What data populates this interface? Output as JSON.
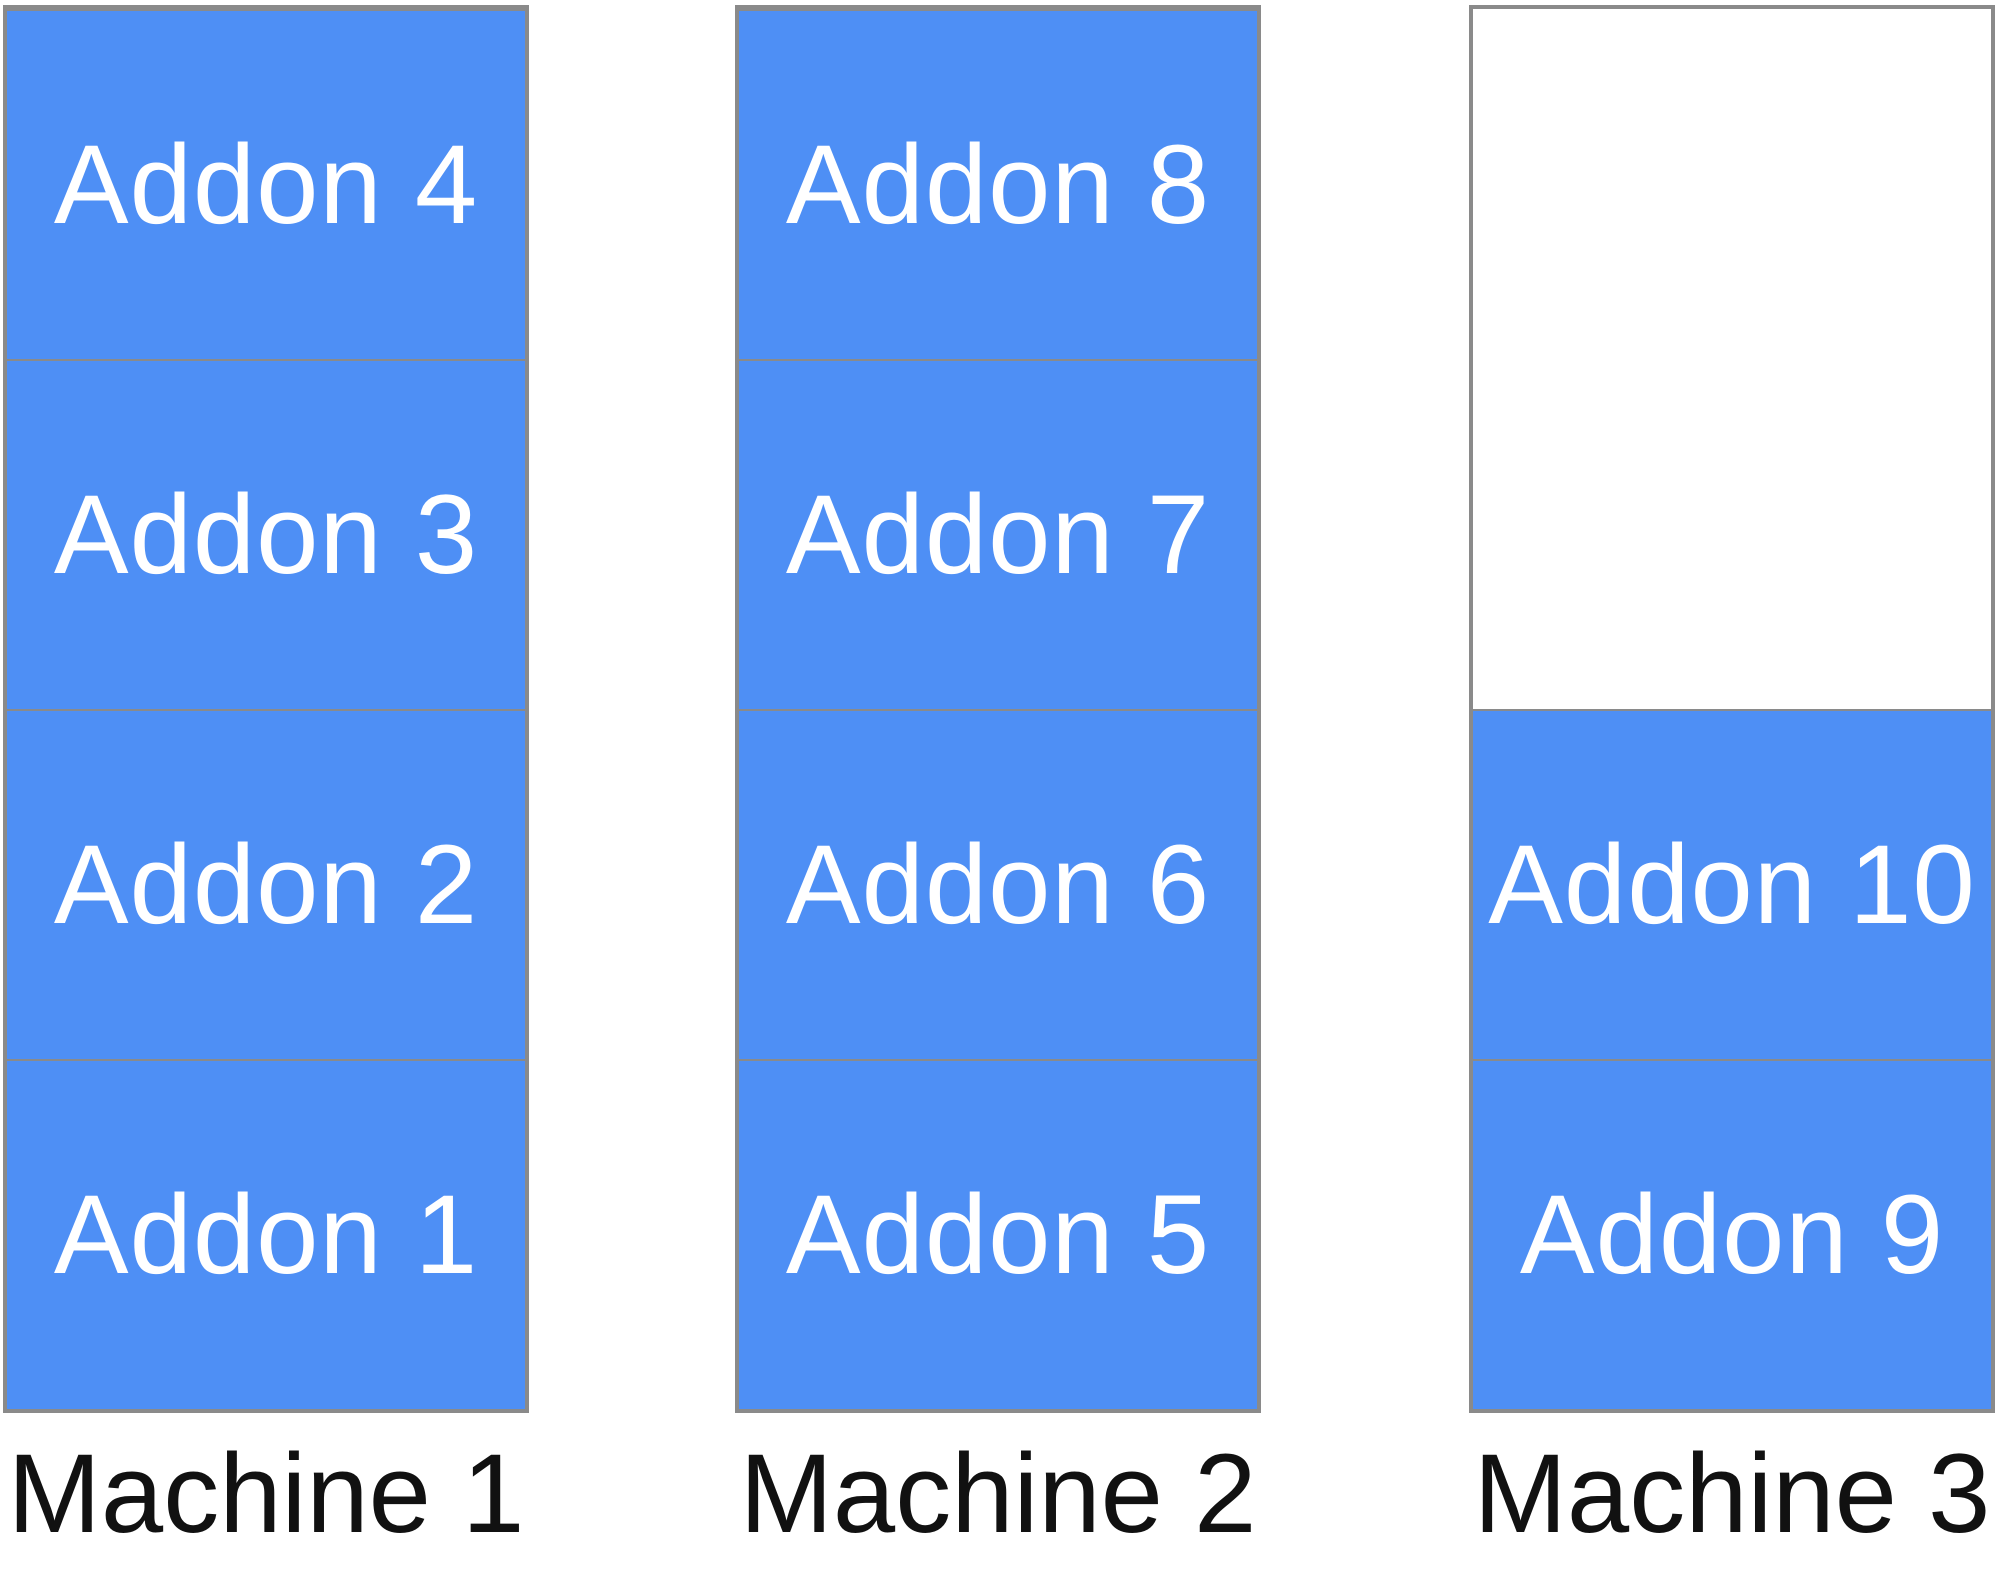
{
  "machines": [
    {
      "label": "Machine 1",
      "addons": [
        "Addon 1",
        "Addon 2",
        "Addon 3",
        "Addon 4"
      ]
    },
    {
      "label": "Machine 2",
      "addons": [
        "Addon 5",
        "Addon 6",
        "Addon 7",
        "Addon 8"
      ]
    },
    {
      "label": "Machine 3",
      "addons": [
        "Addon 9",
        "Addon 10"
      ]
    }
  ],
  "colors": {
    "addon_fill": "#4e8ff5",
    "border": "#8a8a8a",
    "addon_text": "#ffffff",
    "label_text": "#111111"
  }
}
